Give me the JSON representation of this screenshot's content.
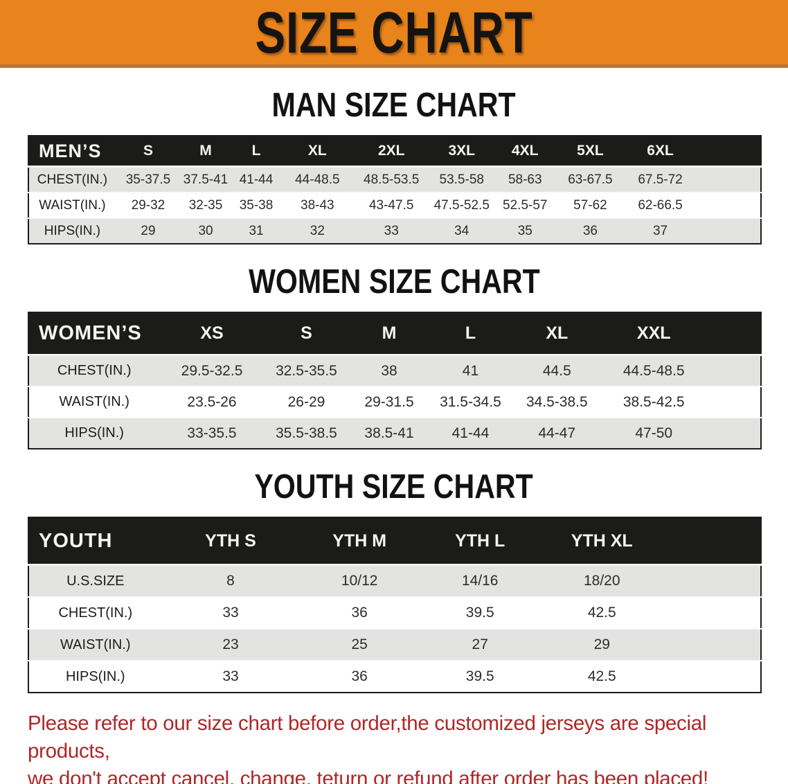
{
  "banner": {
    "title": "SIZE CHART",
    "bg_color": "#E9831B"
  },
  "sections": [
    {
      "key": "men",
      "heading": "MAN SIZE CHART",
      "table_label": "MEN’S",
      "columns": [
        "S",
        "M",
        "L",
        "XL",
        "2XL",
        "3XL",
        "4XL",
        "5XL",
        "6XL"
      ],
      "rows": [
        {
          "label": "CHEST(IN.)",
          "values": [
            "35-37.5",
            "37.5-41",
            "41-44",
            "44-48.5",
            "48.5-53.5",
            "53.5-58",
            "58-63",
            "63-67.5",
            "67.5-72"
          ]
        },
        {
          "label": "WAIST(IN.)",
          "values": [
            "29-32",
            "32-35",
            "35-38",
            "38-43",
            "43-47.5",
            "47.5-52.5",
            "52.5-57",
            "57-62",
            "62-66.5"
          ]
        },
        {
          "label": "HIPS(IN.)",
          "values": [
            "29",
            "30",
            "31",
            "32",
            "33",
            "34",
            "35",
            "36",
            "37"
          ]
        }
      ]
    },
    {
      "key": "women",
      "heading": "WOMEN SIZE CHART",
      "table_label": "WOMEN’S",
      "columns": [
        "XS",
        "S",
        "M",
        "L",
        "XL",
        "XXL"
      ],
      "rows": [
        {
          "label": "CHEST(IN.)",
          "values": [
            "29.5-32.5",
            "32.5-35.5",
            "38",
            "41",
            "44.5",
            "44.5-48.5"
          ]
        },
        {
          "label": "WAIST(IN.)",
          "values": [
            "23.5-26",
            "26-29",
            "29-31.5",
            "31.5-34.5",
            "34.5-38.5",
            "38.5-42.5"
          ]
        },
        {
          "label": "HIPS(IN.)",
          "values": [
            "33-35.5",
            "35.5-38.5",
            "38.5-41",
            "41-44",
            "44-47",
            "47-50"
          ]
        }
      ]
    },
    {
      "key": "youth",
      "heading": "YOUTH SIZE CHART",
      "table_label": "YOUTH",
      "columns": [
        "YTH S",
        "YTH M",
        "YTH L",
        "YTH XL"
      ],
      "rows": [
        {
          "label": "U.S.SIZE",
          "values": [
            "8",
            "10/12",
            "14/16",
            "18/20"
          ]
        },
        {
          "label": "CHEST(IN.)",
          "values": [
            "33",
            "36",
            "39.5",
            "42.5"
          ]
        },
        {
          "label": "WAIST(IN.)",
          "values": [
            "23",
            "25",
            "27",
            "29"
          ]
        },
        {
          "label": "HIPS(IN.)",
          "values": [
            "33",
            "36",
            "39.5",
            "42.5"
          ]
        }
      ]
    }
  ],
  "footer": {
    "line1": "Please refer to our size chart before order,the customized jerseys are special products,",
    "line2": "we don't accept cancel, change, teturn or refund after order has been placed!",
    "text_color": "#AE2728"
  }
}
